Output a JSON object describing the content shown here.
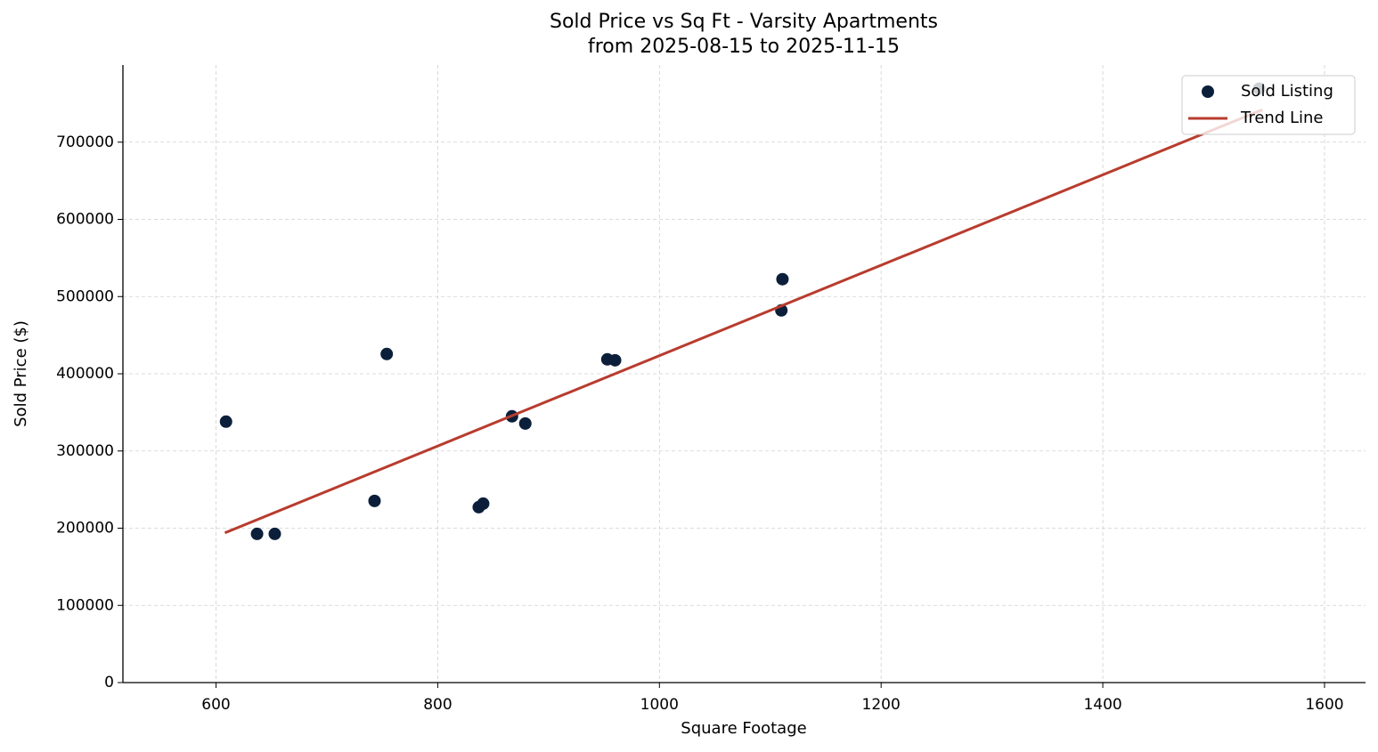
{
  "chart_data": {
    "type": "scatter",
    "title": "Sold Price vs Sq Ft - Varsity Apartments",
    "subtitle": "from 2025-08-15 to 2025-11-15",
    "x_label": "Square Footage",
    "y_label": "Sold Price ($)",
    "xlim": [
      516,
      1637
    ],
    "ylim": [
      0,
      800000
    ],
    "xticks": [
      600,
      800,
      1000,
      1200,
      1400,
      1600
    ],
    "yticks": [
      0,
      100000,
      200000,
      300000,
      400000,
      500000,
      600000,
      700000
    ],
    "grid": true,
    "legend": "upper-right",
    "series": [
      {
        "name": "Sold Listing",
        "type": "scatter",
        "color": "#0b1f3a",
        "x": [
          609,
          637,
          653,
          743,
          754,
          837,
          841,
          867,
          879,
          953,
          960,
          1110,
          1111,
          1541
        ],
        "values": [
          338000,
          192600,
          192600,
          235300,
          425600,
          227200,
          231800,
          344900,
          335600,
          418700,
          417500,
          482100,
          522500,
          769300
        ]
      },
      {
        "name": "Trend Line",
        "type": "line",
        "color": "#b83c2e",
        "x": [
          608,
          1544
        ],
        "values": [
          194000,
          742000
        ]
      }
    ]
  }
}
